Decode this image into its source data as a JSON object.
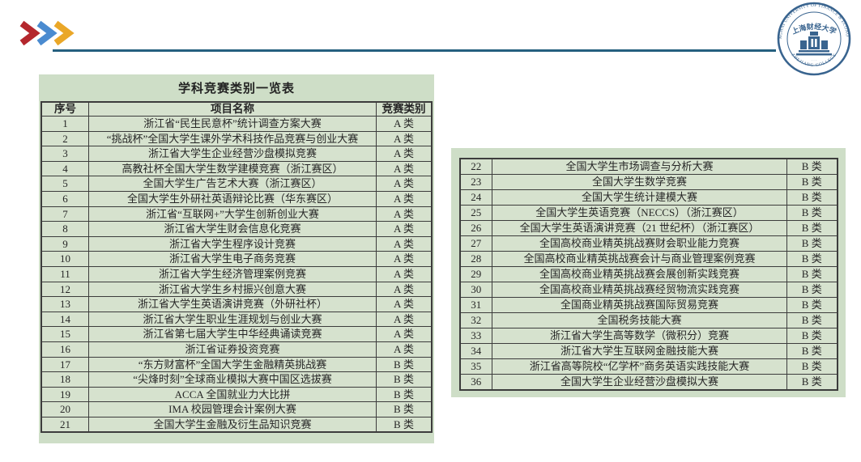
{
  "logo": {
    "top_arc": "SHANGHAI UNIVERSITY OF FINANCE & ECONOMICS",
    "bottom_arc": "ZHEJIANG COLLEGE",
    "center_text": "上海财经大学",
    "bottom_marks": "· · ·"
  },
  "table": {
    "title": "学科竞赛类别一览表",
    "columns": [
      "序号",
      "项目名称",
      "竞赛类别"
    ],
    "left_rows": "1-21",
    "right_rows": "22-36",
    "rows": [
      {
        "no": "1",
        "name": "浙江省“民生民意杯”统计调查方案大赛",
        "category": "A 类"
      },
      {
        "no": "2",
        "name": "“挑战杯”全国大学生课外学术科技作品竞赛与创业大赛",
        "category": "A 类"
      },
      {
        "no": "3",
        "name": "浙江省大学生企业经营沙盘模拟竞赛",
        "category": "A 类"
      },
      {
        "no": "4",
        "name": "高教社杯全国大学生数学建模竞赛（浙江赛区）",
        "category": "A 类"
      },
      {
        "no": "5",
        "name": "全国大学生广告艺术大赛（浙江赛区）",
        "category": "A 类"
      },
      {
        "no": "6",
        "name": "全国大学生外研社英语辩论比赛（华东赛区）",
        "category": "A 类"
      },
      {
        "no": "7",
        "name": "浙江省“互联网+”大学生创新创业大赛",
        "category": "A 类"
      },
      {
        "no": "8",
        "name": "浙江省大学生财会信息化竞赛",
        "category": "A 类"
      },
      {
        "no": "9",
        "name": "浙江省大学生程序设计竞赛",
        "category": "A 类"
      },
      {
        "no": "10",
        "name": "浙江省大学生电子商务竞赛",
        "category": "A 类"
      },
      {
        "no": "11",
        "name": "浙江省大学生经济管理案例竞赛",
        "category": "A 类"
      },
      {
        "no": "12",
        "name": "浙江省大学生乡村振兴创意大赛",
        "category": "A 类"
      },
      {
        "no": "13",
        "name": "浙江省大学生英语演讲竞赛（外研社杯）",
        "category": "A 类"
      },
      {
        "no": "14",
        "name": "浙江省大学生职业生涯规划与创业大赛",
        "category": "A 类"
      },
      {
        "no": "15",
        "name": "浙江省第七届大学生中华经典诵读竞赛",
        "category": "A 类"
      },
      {
        "no": "16",
        "name": "浙江省证券投资竞赛",
        "category": "A 类"
      },
      {
        "no": "17",
        "name": "“东方财富杯”全国大学生金融精英挑战赛",
        "category": "B 类"
      },
      {
        "no": "18",
        "name": "“尖烽时刻”全球商业模拟大赛中国区选拔赛",
        "category": "B 类"
      },
      {
        "no": "19",
        "name": "ACCA 全国就业力大比拼",
        "category": "B 类"
      },
      {
        "no": "20",
        "name": "IMA 校园管理会计案例大赛",
        "category": "B 类"
      },
      {
        "no": "21",
        "name": "全国大学生金融及衍生品知识竞赛",
        "category": "B 类"
      },
      {
        "no": "22",
        "name": "全国大学生市场调查与分析大赛",
        "category": "B 类"
      },
      {
        "no": "23",
        "name": "全国大学生数学竞赛",
        "category": "B 类"
      },
      {
        "no": "24",
        "name": "全国大学生统计建模大赛",
        "category": "B 类"
      },
      {
        "no": "25",
        "name": "全国大学生英语竞赛（NECCS）（浙江赛区）",
        "category": "B 类"
      },
      {
        "no": "26",
        "name": "全国大学生英语演讲竞赛（21 世纪杯）（浙江赛区）",
        "category": "B 类"
      },
      {
        "no": "27",
        "name": "全国高校商业精英挑战赛财会职业能力竞赛",
        "category": "B 类"
      },
      {
        "no": "28",
        "name": "全国高校商业精英挑战赛会计与商业管理案例竞赛",
        "category": "B 类"
      },
      {
        "no": "29",
        "name": "全国高校商业精英挑战赛会展创新实践竞赛",
        "category": "B 类"
      },
      {
        "no": "30",
        "name": "全国高校商业精英挑战赛经贸物流实践竞赛",
        "category": "B 类"
      },
      {
        "no": "31",
        "name": "全国商业精英挑战赛国际贸易竞赛",
        "category": "B 类"
      },
      {
        "no": "32",
        "name": "全国税务技能大赛",
        "category": "B 类"
      },
      {
        "no": "33",
        "name": "浙江省大学生高等数学（微积分）竞赛",
        "category": "B 类"
      },
      {
        "no": "34",
        "name": "浙江省大学生互联网金融技能大赛",
        "category": "B 类"
      },
      {
        "no": "35",
        "name": "浙江省高等院校“亿学杯”商务英语实践技能大赛",
        "category": "B 类"
      },
      {
        "no": "36",
        "name": "全国大学生企业经营沙盘模拟大赛",
        "category": "B 类"
      }
    ]
  },
  "colors": {
    "panel_green": "#cedec7",
    "cell_green": "#d6e2ce",
    "rule_blue": "#25607f",
    "chevron_red": "#b4272d",
    "chevron_blue": "#4a8bd0",
    "chevron_orange": "#eaa728",
    "seal_blue": "#39648f",
    "line": "#3c3c3c"
  }
}
